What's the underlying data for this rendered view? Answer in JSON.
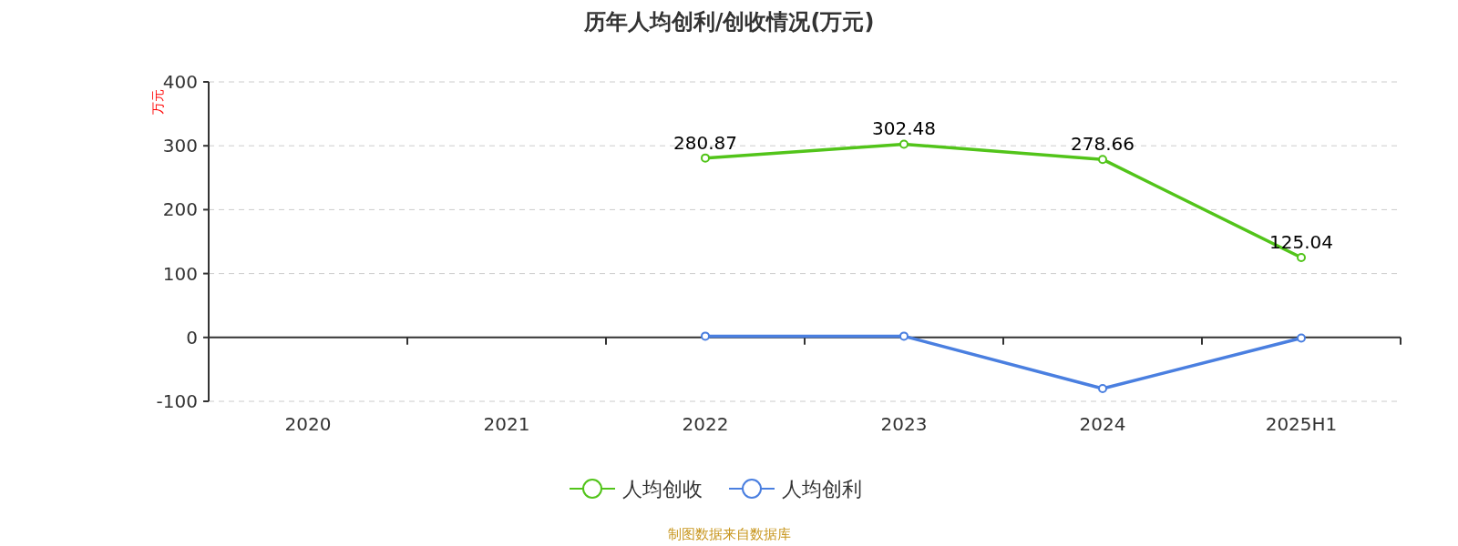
{
  "chart_data": {
    "type": "line",
    "title": "历年人均创利/创收情况(万元)",
    "ylabel": "万元",
    "categories": [
      "2020",
      "2021",
      "2022",
      "2023",
      "2024",
      "2025H1"
    ],
    "series": [
      {
        "name": "人均创收",
        "color": "#52c41a",
        "values": [
          null,
          null,
          280.87,
          302.48,
          278.66,
          125.04
        ],
        "value_labels": [
          null,
          null,
          "280.87",
          "302.48",
          "278.66",
          "125.04"
        ]
      },
      {
        "name": "人均创利",
        "color": "#4a7fe0",
        "values": [
          null,
          null,
          2,
          2,
          -80,
          -1
        ]
      }
    ],
    "ylim": [
      -100,
      400
    ],
    "yticks": [
      -100,
      0,
      100,
      200,
      300,
      400
    ],
    "grid": "y",
    "legend": "bottom",
    "marker": "circle",
    "annotations": [
      "制图数据来自数据库"
    ]
  }
}
